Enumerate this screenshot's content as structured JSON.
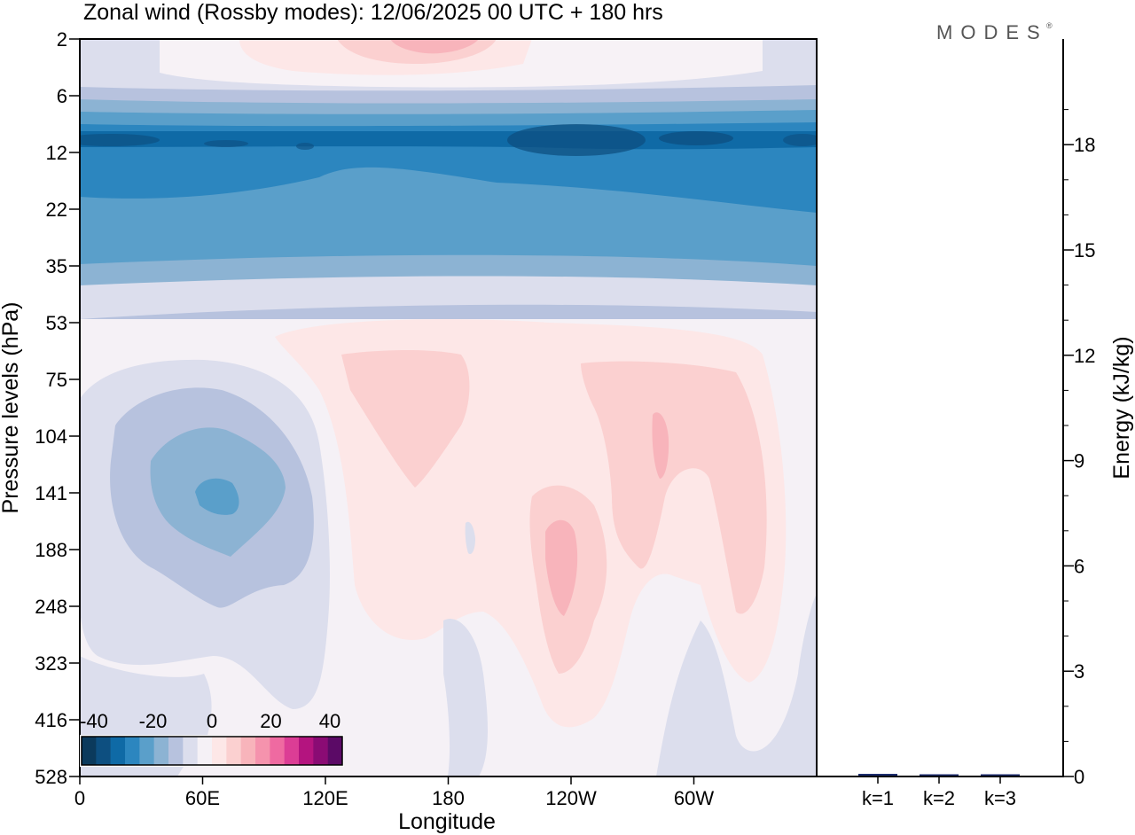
{
  "title": "Zonal wind (Rossby modes):  12/06/2025  00 UTC  + 180 hrs",
  "logo": {
    "text": "MODES",
    "mark": "®"
  },
  "chart_data": [
    {
      "type": "heatmap",
      "xlabel": "Longitude",
      "ylabel": "Pressure levels (hPa)",
      "x_tick_labels": [
        "0",
        "60E",
        "120E",
        "180",
        "120W",
        "60W"
      ],
      "x_tick_values_deg": [
        0,
        60,
        120,
        180,
        240,
        300
      ],
      "x_range_deg": [
        0,
        360
      ],
      "y_tick_labels": [
        "2",
        "6",
        "12",
        "22",
        "35",
        "53",
        "75",
        "104",
        "141",
        "188",
        "248",
        "323",
        "416",
        "528"
      ],
      "y_scale": "pressure levels, evenly spaced, top to bottom",
      "colorbar": {
        "tick_labels": [
          "-40",
          "-20",
          "0",
          "20",
          "40"
        ],
        "colors": [
          "#0b3a5c",
          "#0d4f80",
          "#0f6aa6",
          "#2c86bf",
          "#5a9fca",
          "#8cb3d3",
          "#b7c2de",
          "#dcdeed",
          "#f5f1f6",
          "#fde7e7",
          "#fbd0d0",
          "#f8b4bb",
          "#f593ad",
          "#ef6aa1",
          "#dc3d95",
          "#b4147f",
          "#8a0b74",
          "#5b0a66"
        ]
      },
      "wind_regions": [
        {
          "label": "stratosphere easterly jet core",
          "value": -35,
          "lon_range": [
            0,
            360
          ],
          "level_range": [
            "12",
            "12"
          ]
        },
        {
          "label": "stratosphere easterly band",
          "value": -25,
          "lon_range": [
            0,
            360
          ],
          "level_range": [
            "12",
            "22"
          ]
        },
        {
          "label": "westward pocket near 70E",
          "value": -20,
          "lon_range": [
            55,
            80
          ],
          "level_range": [
            "104",
            "141"
          ]
        },
        {
          "label": "westerly maximum near 120W",
          "value": 20,
          "lon_range": [
            228,
            243
          ],
          "level_range": [
            "141",
            "248"
          ]
        },
        {
          "label": "westerly maximum near 70W",
          "value": 20,
          "lon_range": [
            280,
            287
          ],
          "level_range": [
            "104",
            "141"
          ]
        },
        {
          "label": "top westerly patch near 180",
          "value": 12,
          "lon_range": [
            150,
            200
          ],
          "level_range": [
            "2",
            "2"
          ]
        }
      ]
    },
    {
      "type": "bar",
      "categories": [
        "k=1",
        "k=2",
        "k=3"
      ],
      "values": [
        0.05,
        0.02,
        0.02
      ],
      "ylabel": "Energy (kJ/kg)",
      "ylim": [
        0,
        20
      ],
      "y_tick_labels": [
        "0",
        "3",
        "6",
        "9",
        "12",
        "15",
        "18"
      ],
      "y_tick_values": [
        0,
        3,
        6,
        9,
        12,
        15,
        18
      ],
      "bar_color": "#1a2a6c"
    }
  ]
}
